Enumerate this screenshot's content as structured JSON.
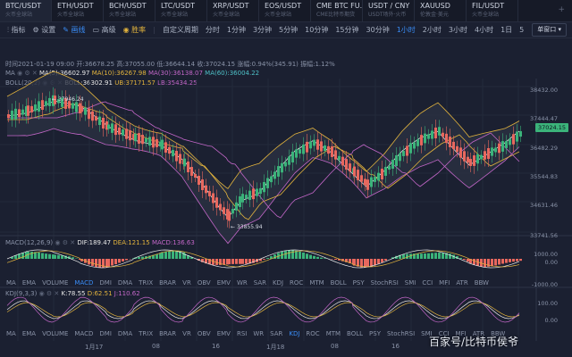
{
  "tabs": [
    {
      "name": "BTC/USDT",
      "sub": "火币全球站"
    },
    {
      "name": "ETH/USDT",
      "sub": "火币全球站"
    },
    {
      "name": "BCH/USDT",
      "sub": "火币全球站"
    },
    {
      "name": "LTC/USDT",
      "sub": "火币全球站"
    },
    {
      "name": "XRP/USDT",
      "sub": "火币全球站"
    },
    {
      "name": "EOS/USDT",
      "sub": "火币全球站"
    },
    {
      "name": "CME BTC FU...",
      "sub": "CME比特币期货"
    },
    {
      "name": "USDT / CNY",
      "sub": "USDT场外·火币"
    },
    {
      "name": "XAUUSD",
      "sub": "伦敦金·美元"
    },
    {
      "name": "FIL/USDT",
      "sub": "火币全球站"
    }
  ],
  "toolbar": {
    "indicators": "指标",
    "settings": "设置",
    "line": "画线",
    "sell": "高级",
    "buy": "胜率",
    "custom_period": "自定义周期",
    "periods": [
      "分时",
      "1分钟",
      "3分钟",
      "5分钟",
      "10分钟",
      "15分钟",
      "30分钟",
      "1小时",
      "2小时",
      "3小时",
      "4小时",
      "1日",
      "5"
    ],
    "active_period": "1小时",
    "layout": "单窗口"
  },
  "info": {
    "time": "时间2021-01-19 09:00",
    "open": "开:36678.25",
    "high": "高:37055.00",
    "low": "低:36644.14",
    "close": "收:37024.15",
    "change": "涨幅:0.94%(345.91)",
    "amplitude": "振幅:1.12%"
  },
  "ma": {
    "label": "MA",
    "ma5": "MA(5):36602.97",
    "ma10": "MA(10):36267.98",
    "ma30": "MA(30):36138.07",
    "ma60": "MA(60):36004.22"
  },
  "boll": {
    "label": "BOLL(20,2)",
    "boll": "BOLL:36302.91",
    "ub": "UB:37171.57",
    "lb": "LB:35434.25"
  },
  "price_axis": [
    "38432.00",
    "37444.47",
    "36482.29",
    "35544.83",
    "34631.46",
    "33741.56"
  ],
  "current_price": "37024.15",
  "high_anno": "37946.24",
  "low_anno": "33855.94",
  "macd": {
    "label": "MACD(12,26,9)",
    "dif": "DIF:189.47",
    "dea": "DEA:121.15",
    "macd": "MACD:136.63",
    "axis": [
      "1000.00",
      "0.00",
      "-1000.00"
    ]
  },
  "kdj": {
    "label": "KDJ(9,3,3)",
    "k": "K:78.55",
    "d": "D:62.51",
    "j": "J:110.62",
    "axis": [
      "100.00",
      "0.00"
    ]
  },
  "indicator_tabs": [
    "MA",
    "EMA",
    "VOLUME",
    "MACD",
    "DMI",
    "DMA",
    "TRIX",
    "BRAR",
    "VR",
    "OBV",
    "EMV",
    "WR",
    "SAR",
    "KDJ",
    "ROC",
    "MTM",
    "BOLL",
    "PSY",
    "StochRSI",
    "SMI",
    "CCI",
    "MFI",
    "ATR",
    "BBW"
  ],
  "indicator_tabs2": [
    "MA",
    "EMA",
    "VOLUME",
    "MACD",
    "DMI",
    "DMA",
    "TRIX",
    "BRAR",
    "VR",
    "OBV",
    "EMV",
    "RSI",
    "WR",
    "SAR",
    "KDJ",
    "ROC",
    "MTM",
    "BOLL",
    "PSY",
    "StochRSI",
    "SMI",
    "CCI",
    "MFI",
    "ATR",
    "BBW"
  ],
  "x_labels": [
    "1月17",
    "08",
    "16",
    "1月18",
    "08",
    "16"
  ],
  "watermark": "百家号/比特币侯爷",
  "colors": {
    "up": "#3bb37a",
    "down": "#e8685e",
    "accent": "#3a8df7"
  }
}
